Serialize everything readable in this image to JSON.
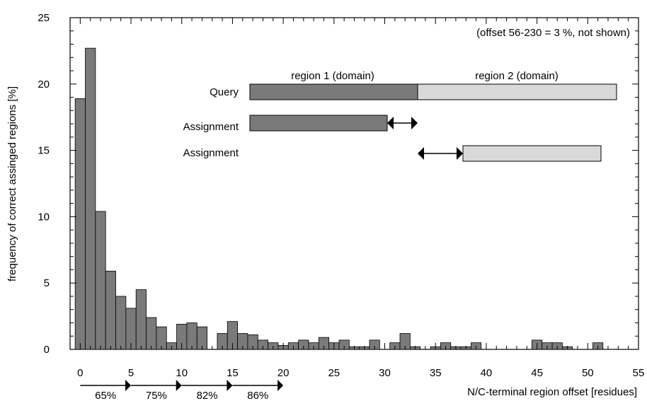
{
  "chart_data": {
    "type": "bar",
    "ylabel": "frequency of correct assinged regions [%]",
    "xlabel": "N/C-terminal region offset [residues]",
    "xlim": [
      -1,
      55
    ],
    "ylim": [
      0,
      25
    ],
    "x_ticks": [
      0,
      5,
      10,
      15,
      20,
      25,
      30,
      35,
      40,
      45,
      50,
      55
    ],
    "y_ticks": [
      0,
      5,
      10,
      15,
      20,
      25
    ],
    "grid": false,
    "annotation": "(offset 56-230 = 3 %, not shown)",
    "x": [
      0,
      1,
      2,
      3,
      4,
      5,
      6,
      7,
      8,
      9,
      10,
      11,
      12,
      13,
      14,
      15,
      16,
      17,
      18,
      19,
      20,
      21,
      22,
      23,
      24,
      25,
      26,
      27,
      28,
      29,
      30,
      31,
      32,
      33,
      34,
      35,
      36,
      37,
      38,
      39,
      40,
      41,
      42,
      43,
      44,
      45,
      46,
      47,
      48,
      49,
      50,
      51,
      52
    ],
    "values": [
      18.9,
      22.7,
      10.4,
      5.9,
      4.0,
      3.1,
      4.5,
      2.4,
      1.7,
      0.5,
      1.9,
      2.0,
      1.7,
      0,
      1.2,
      2.1,
      1.2,
      1.1,
      0.7,
      0.5,
      0.3,
      0.5,
      0.7,
      0.5,
      0.9,
      0.5,
      0.7,
      0.2,
      0.2,
      0.7,
      0,
      0.5,
      1.2,
      0.2,
      0,
      0.2,
      0.5,
      0.2,
      0.2,
      0.5,
      0,
      0,
      0,
      0,
      0,
      0.7,
      0.5,
      0.5,
      0.2,
      0,
      0,
      0.5,
      0
    ],
    "cumulative_arrows": [
      {
        "from": 0,
        "to": 5,
        "label": "65%"
      },
      {
        "from": 5,
        "to": 10,
        "label": "75%"
      },
      {
        "from": 10,
        "to": 15,
        "label": "82%"
      },
      {
        "from": 15,
        "to": 20,
        "label": "86%"
      }
    ]
  },
  "inset": {
    "query_label": "Query",
    "assignment_label_1": "Assignment",
    "assignment_label_2": "Assignment",
    "region1_label": "region 1 (domain)",
    "region2_label": "region 2 (domain)"
  },
  "colors": {
    "bar": "#7a7a7a",
    "region1": "#7a7a7a",
    "region2": "#d9d9d9",
    "axis": "#000000"
  }
}
